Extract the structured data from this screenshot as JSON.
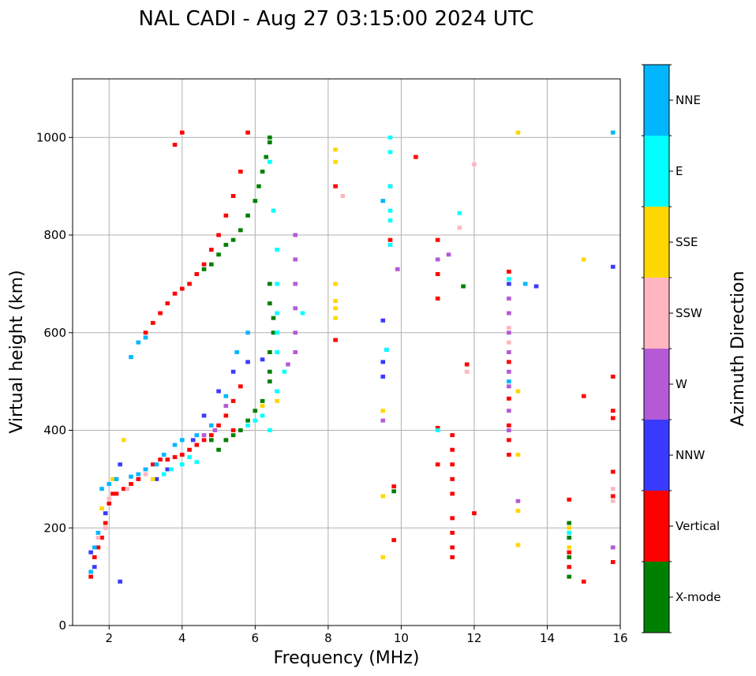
{
  "chart_data": {
    "type": "scatter",
    "title": "NAL CADI - Aug 27 03:15:00 2024 UTC",
    "xlabel": "Frequency (MHz)",
    "ylabel": "Virtual height (km)",
    "xlim": [
      1,
      16
    ],
    "ylim": [
      0,
      1120
    ],
    "xticks": [
      2,
      4,
      6,
      8,
      10,
      12,
      14,
      16
    ],
    "yticks": [
      0,
      200,
      400,
      600,
      800,
      1000
    ],
    "grid": true,
    "colorbar": {
      "title": "Azimuth Direction",
      "categories": [
        {
          "label": "X-mode",
          "color": "#008000"
        },
        {
          "label": "Vertical",
          "color": "#ff0000"
        },
        {
          "label": "NNW",
          "color": "#3a3aff"
        },
        {
          "label": "W",
          "color": "#b45ad6"
        },
        {
          "label": "SSW",
          "color": "#ffb6c1"
        },
        {
          "label": "SSE",
          "color": "#ffd700"
        },
        {
          "label": "E",
          "color": "#00ffff"
        },
        {
          "label": "NNE",
          "color": "#00b7ff"
        }
      ]
    },
    "series": [
      {
        "name": "Vertical",
        "points": [
          [
            1.5,
            100
          ],
          [
            1.6,
            140
          ],
          [
            1.7,
            160
          ],
          [
            1.8,
            180
          ],
          [
            1.9,
            210
          ],
          [
            2.0,
            250
          ],
          [
            2.1,
            270
          ],
          [
            2.2,
            270
          ],
          [
            2.4,
            280
          ],
          [
            2.6,
            290
          ],
          [
            2.8,
            300
          ],
          [
            3.0,
            320
          ],
          [
            3.2,
            330
          ],
          [
            3.4,
            340
          ],
          [
            3.6,
            340
          ],
          [
            3.8,
            345
          ],
          [
            4.0,
            350
          ],
          [
            4.2,
            360
          ],
          [
            4.4,
            370
          ],
          [
            4.6,
            380
          ],
          [
            4.8,
            390
          ],
          [
            5.0,
            410
          ],
          [
            5.2,
            430
          ],
          [
            5.4,
            460
          ],
          [
            5.6,
            490
          ],
          [
            3.0,
            600
          ],
          [
            3.2,
            620
          ],
          [
            3.4,
            640
          ],
          [
            3.6,
            660
          ],
          [
            3.8,
            680
          ],
          [
            4.0,
            690
          ],
          [
            4.2,
            700
          ],
          [
            4.4,
            720
          ],
          [
            4.6,
            740
          ],
          [
            4.8,
            770
          ],
          [
            5.0,
            800
          ],
          [
            5.2,
            840
          ],
          [
            5.4,
            880
          ],
          [
            5.6,
            930
          ],
          [
            5.2,
            380
          ],
          [
            5.4,
            400
          ],
          [
            4.0,
            1010
          ],
          [
            3.8,
            985
          ],
          [
            5.8,
            1010
          ],
          [
            8.2,
            900
          ],
          [
            8.2,
            585
          ],
          [
            9.7,
            900
          ],
          [
            9.7,
            790
          ],
          [
            10.4,
            960
          ],
          [
            11.0,
            790
          ],
          [
            11.0,
            720
          ],
          [
            11.0,
            670
          ],
          [
            11.0,
            405
          ],
          [
            11.0,
            330
          ],
          [
            11.4,
            390
          ],
          [
            11.4,
            360
          ],
          [
            11.4,
            330
          ],
          [
            11.4,
            300
          ],
          [
            11.4,
            270
          ],
          [
            11.4,
            220
          ],
          [
            11.4,
            190
          ],
          [
            11.4,
            160
          ],
          [
            11.4,
            140
          ],
          [
            12.0,
            230
          ],
          [
            11.8,
            535
          ],
          [
            12.95,
            725
          ],
          [
            12.95,
            540
          ],
          [
            12.95,
            410
          ],
          [
            12.95,
            380
          ],
          [
            12.95,
            350
          ],
          [
            12.95,
            465
          ],
          [
            14.6,
            258
          ],
          [
            14.6,
            150
          ],
          [
            14.6,
            120
          ],
          [
            15.0,
            470
          ],
          [
            15.0,
            90
          ],
          [
            15.8,
            510
          ],
          [
            15.8,
            440
          ],
          [
            15.8,
            425
          ],
          [
            15.8,
            315
          ],
          [
            15.8,
            265
          ],
          [
            15.8,
            130
          ],
          [
            9.8,
            175
          ],
          [
            9.8,
            285
          ]
        ]
      },
      {
        "name": "X-mode",
        "points": [
          [
            4.8,
            380
          ],
          [
            5.0,
            360
          ],
          [
            5.2,
            380
          ],
          [
            5.4,
            390
          ],
          [
            5.6,
            400
          ],
          [
            5.8,
            420
          ],
          [
            6.0,
            440
          ],
          [
            6.2,
            460
          ],
          [
            6.4,
            500
          ],
          [
            6.4,
            520
          ],
          [
            6.4,
            560
          ],
          [
            6.5,
            600
          ],
          [
            6.5,
            630
          ],
          [
            6.4,
            660
          ],
          [
            6.4,
            700
          ],
          [
            4.6,
            730
          ],
          [
            4.8,
            740
          ],
          [
            5.0,
            760
          ],
          [
            5.2,
            780
          ],
          [
            5.4,
            790
          ],
          [
            5.6,
            810
          ],
          [
            5.8,
            840
          ],
          [
            6.0,
            870
          ],
          [
            6.1,
            900
          ],
          [
            6.2,
            930
          ],
          [
            6.3,
            960
          ],
          [
            6.4,
            990
          ],
          [
            6.4,
            1000
          ],
          [
            9.8,
            275
          ],
          [
            11.7,
            695
          ],
          [
            14.6,
            210
          ],
          [
            14.6,
            180
          ],
          [
            14.6,
            140
          ],
          [
            14.6,
            100
          ]
        ]
      },
      {
        "name": "NNW",
        "points": [
          [
            1.5,
            150
          ],
          [
            1.6,
            120
          ],
          [
            1.9,
            230
          ],
          [
            2.3,
            330
          ],
          [
            3.3,
            300
          ],
          [
            3.6,
            320
          ],
          [
            4.3,
            380
          ],
          [
            4.6,
            430
          ],
          [
            5.0,
            480
          ],
          [
            5.4,
            520
          ],
          [
            5.8,
            540
          ],
          [
            6.2,
            545
          ],
          [
            9.5,
            625
          ],
          [
            9.5,
            510
          ],
          [
            9.5,
            540
          ],
          [
            12.95,
            700
          ],
          [
            13.7,
            695
          ],
          [
            15.8,
            735
          ],
          [
            15.8,
            160
          ],
          [
            9.6,
            565
          ],
          [
            2.3,
            90
          ]
        ]
      },
      {
        "name": "W",
        "points": [
          [
            4.6,
            390
          ],
          [
            4.9,
            400
          ],
          [
            5.2,
            450
          ],
          [
            6.9,
            535
          ],
          [
            7.1,
            560
          ],
          [
            7.1,
            600
          ],
          [
            7.1,
            650
          ],
          [
            7.1,
            700
          ],
          [
            7.1,
            750
          ],
          [
            7.1,
            800
          ],
          [
            9.5,
            420
          ],
          [
            9.9,
            730
          ],
          [
            11.0,
            750
          ],
          [
            11.3,
            760
          ],
          [
            12.95,
            670
          ],
          [
            12.95,
            640
          ],
          [
            12.95,
            600
          ],
          [
            12.95,
            560
          ],
          [
            12.95,
            520
          ],
          [
            12.95,
            490
          ],
          [
            12.95,
            440
          ],
          [
            12.95,
            400
          ],
          [
            13.2,
            255
          ],
          [
            15.8,
            160
          ]
        ]
      },
      {
        "name": "SSW",
        "points": [
          [
            1.7,
            180
          ],
          [
            1.9,
            200
          ],
          [
            2.0,
            260
          ],
          [
            2.2,
            300
          ],
          [
            2.5,
            280
          ],
          [
            3.0,
            310
          ],
          [
            8.4,
            880
          ],
          [
            9.5,
            870
          ],
          [
            11.6,
            815
          ],
          [
            11.8,
            520
          ],
          [
            12.0,
            945
          ],
          [
            12.95,
            610
          ],
          [
            12.95,
            580
          ],
          [
            15.8,
            280
          ],
          [
            15.8,
            255
          ]
        ]
      },
      {
        "name": "SSE",
        "points": [
          [
            1.8,
            240
          ],
          [
            2.1,
            300
          ],
          [
            2.4,
            380
          ],
          [
            3.2,
            300
          ],
          [
            6.2,
            450
          ],
          [
            6.6,
            460
          ],
          [
            8.2,
            975
          ],
          [
            8.2,
            950
          ],
          [
            8.2,
            700
          ],
          [
            8.2,
            665
          ],
          [
            8.2,
            650
          ],
          [
            8.2,
            630
          ],
          [
            9.5,
            440
          ],
          [
            9.5,
            265
          ],
          [
            9.5,
            140
          ],
          [
            13.2,
            1010
          ],
          [
            13.2,
            480
          ],
          [
            13.2,
            350
          ],
          [
            13.2,
            235
          ],
          [
            13.2,
            165
          ],
          [
            15.0,
            750
          ],
          [
            15.8,
            1010
          ],
          [
            14.6,
            200
          ],
          [
            14.6,
            160
          ]
        ]
      },
      {
        "name": "E",
        "points": [
          [
            3.5,
            310
          ],
          [
            3.7,
            320
          ],
          [
            4.0,
            330
          ],
          [
            4.2,
            345
          ],
          [
            4.4,
            335
          ],
          [
            5.8,
            410
          ],
          [
            6.0,
            420
          ],
          [
            6.2,
            430
          ],
          [
            6.4,
            400
          ],
          [
            6.6,
            480
          ],
          [
            6.8,
            520
          ],
          [
            6.6,
            560
          ],
          [
            6.6,
            600
          ],
          [
            6.6,
            640
          ],
          [
            6.6,
            700
          ],
          [
            6.6,
            770
          ],
          [
            6.5,
            850
          ],
          [
            6.4,
            950
          ],
          [
            7.3,
            640
          ],
          [
            9.7,
            1000
          ],
          [
            9.7,
            970
          ],
          [
            9.7,
            850
          ],
          [
            9.7,
            830
          ],
          [
            9.7,
            780
          ],
          [
            9.6,
            565
          ],
          [
            9.7,
            900
          ],
          [
            11.6,
            845
          ],
          [
            11.0,
            400
          ],
          [
            12.95,
            710
          ],
          [
            14.6,
            190
          ]
        ]
      },
      {
        "name": "NNE",
        "points": [
          [
            1.5,
            110
          ],
          [
            1.6,
            160
          ],
          [
            1.7,
            190
          ],
          [
            1.8,
            280
          ],
          [
            2.0,
            290
          ],
          [
            2.2,
            300
          ],
          [
            2.6,
            305
          ],
          [
            2.8,
            310
          ],
          [
            3.0,
            320
          ],
          [
            3.3,
            330
          ],
          [
            3.5,
            350
          ],
          [
            3.8,
            370
          ],
          [
            4.0,
            380
          ],
          [
            4.4,
            390
          ],
          [
            4.8,
            410
          ],
          [
            5.2,
            470
          ],
          [
            5.5,
            560
          ],
          [
            5.8,
            600
          ],
          [
            2.6,
            550
          ],
          [
            2.8,
            580
          ],
          [
            3.0,
            590
          ],
          [
            9.5,
            870
          ],
          [
            12.95,
            500
          ],
          [
            13.4,
            700
          ],
          [
            15.8,
            1010
          ]
        ]
      }
    ]
  }
}
